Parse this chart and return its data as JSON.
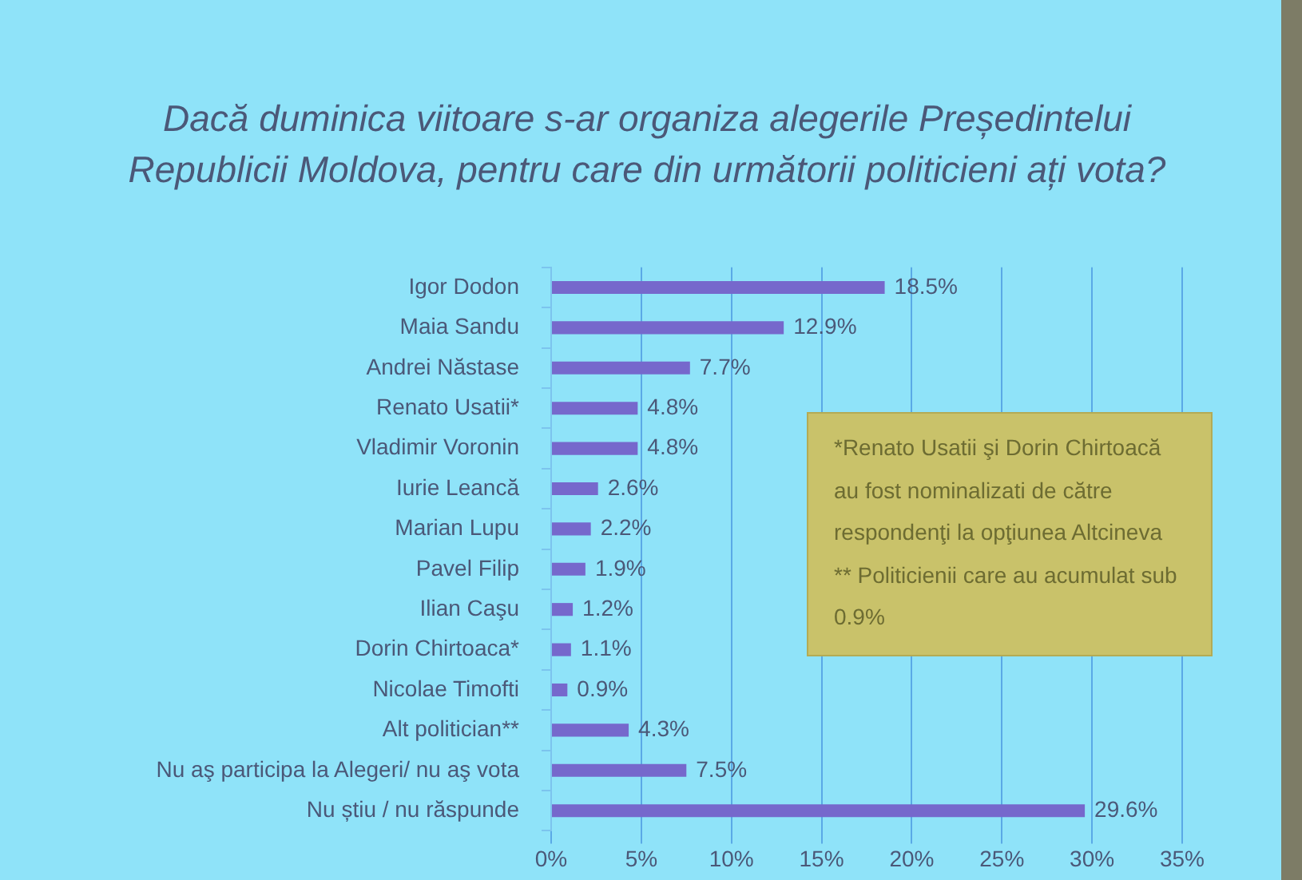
{
  "chart_data": {
    "type": "bar",
    "orientation": "horizontal",
    "title": "Dacă duminica viitoare s-ar organiza alegerile Președintelui Republicii Moldova, pentru care din următorii politicieni ați vota?",
    "categories": [
      "Igor Dodon",
      "Maia Sandu",
      "Andrei Năstase",
      "Renato Usatii*",
      "Vladimir Voronin",
      "Iurie Leancă",
      "Marian Lupu",
      "Pavel Filip",
      "Ilian Caşu",
      "Dorin Chirtoaca*",
      "Nicolae Timofti",
      "Alt politician**",
      "Nu aş participa la Alegeri/ nu aş vota",
      "Nu știu / nu răspunde"
    ],
    "values": [
      18.5,
      12.9,
      7.7,
      4.8,
      4.8,
      2.6,
      2.2,
      1.9,
      1.2,
      1.1,
      0.9,
      4.3,
      7.5,
      29.6
    ],
    "value_labels": [
      "18.5%",
      "12.9%",
      "7.7%",
      "4.8%",
      "4.8%",
      "2.6%",
      "2.2%",
      "1.9%",
      "1.2%",
      "1.1%",
      "0.9%",
      "4.3%",
      "7.5%",
      "29.6%"
    ],
    "color": "#7668cc",
    "xlim": [
      0,
      35
    ],
    "xticks": [
      {
        "value": 0,
        "label": "0%"
      },
      {
        "value": 5,
        "label": "5%"
      },
      {
        "value": 10,
        "label": "10%"
      },
      {
        "value": 15,
        "label": "15%"
      },
      {
        "value": 20,
        "label": "20%"
      },
      {
        "value": 25,
        "label": "25%"
      },
      {
        "value": 30,
        "label": "30%"
      },
      {
        "value": 35,
        "label": "35%"
      }
    ],
    "grid": "x",
    "annotations": [
      "*Renato Usatii şi Dorin Chirtoacă au fost nominalizati de către respondenţi la opţiunea Altcineva",
      "** Politicienii care au acumulat sub 0.9%"
    ]
  }
}
